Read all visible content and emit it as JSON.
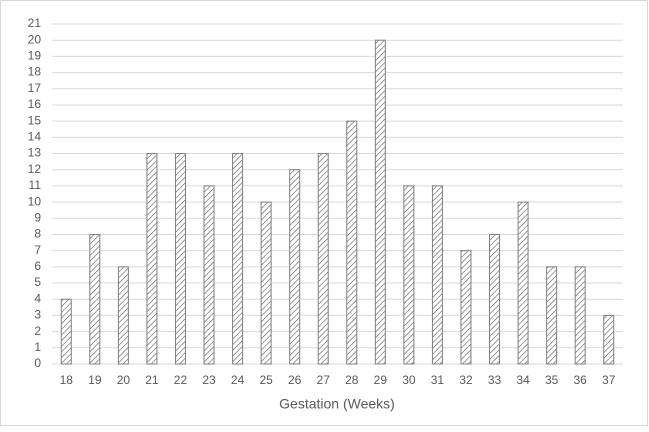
{
  "chart_data": {
    "type": "bar",
    "x_label": "Gestation (Weeks)",
    "categories": [
      "18",
      "19",
      "20",
      "21",
      "22",
      "23",
      "24",
      "25",
      "26",
      "27",
      "28",
      "29",
      "30",
      "31",
      "32",
      "33",
      "34",
      "35",
      "36",
      "37"
    ],
    "values": [
      4,
      8,
      6,
      13,
      13,
      11,
      13,
      10,
      12,
      13,
      15,
      20,
      11,
      11,
      7,
      8,
      10,
      6,
      6,
      3
    ],
    "color": "#595959",
    "ylim": [
      0,
      21
    ],
    "yticks": [
      0,
      1,
      2,
      3,
      4,
      5,
      6,
      7,
      8,
      9,
      10,
      11,
      12,
      13,
      14,
      15,
      16,
      17,
      18,
      19,
      20,
      21
    ],
    "grid": true
  }
}
